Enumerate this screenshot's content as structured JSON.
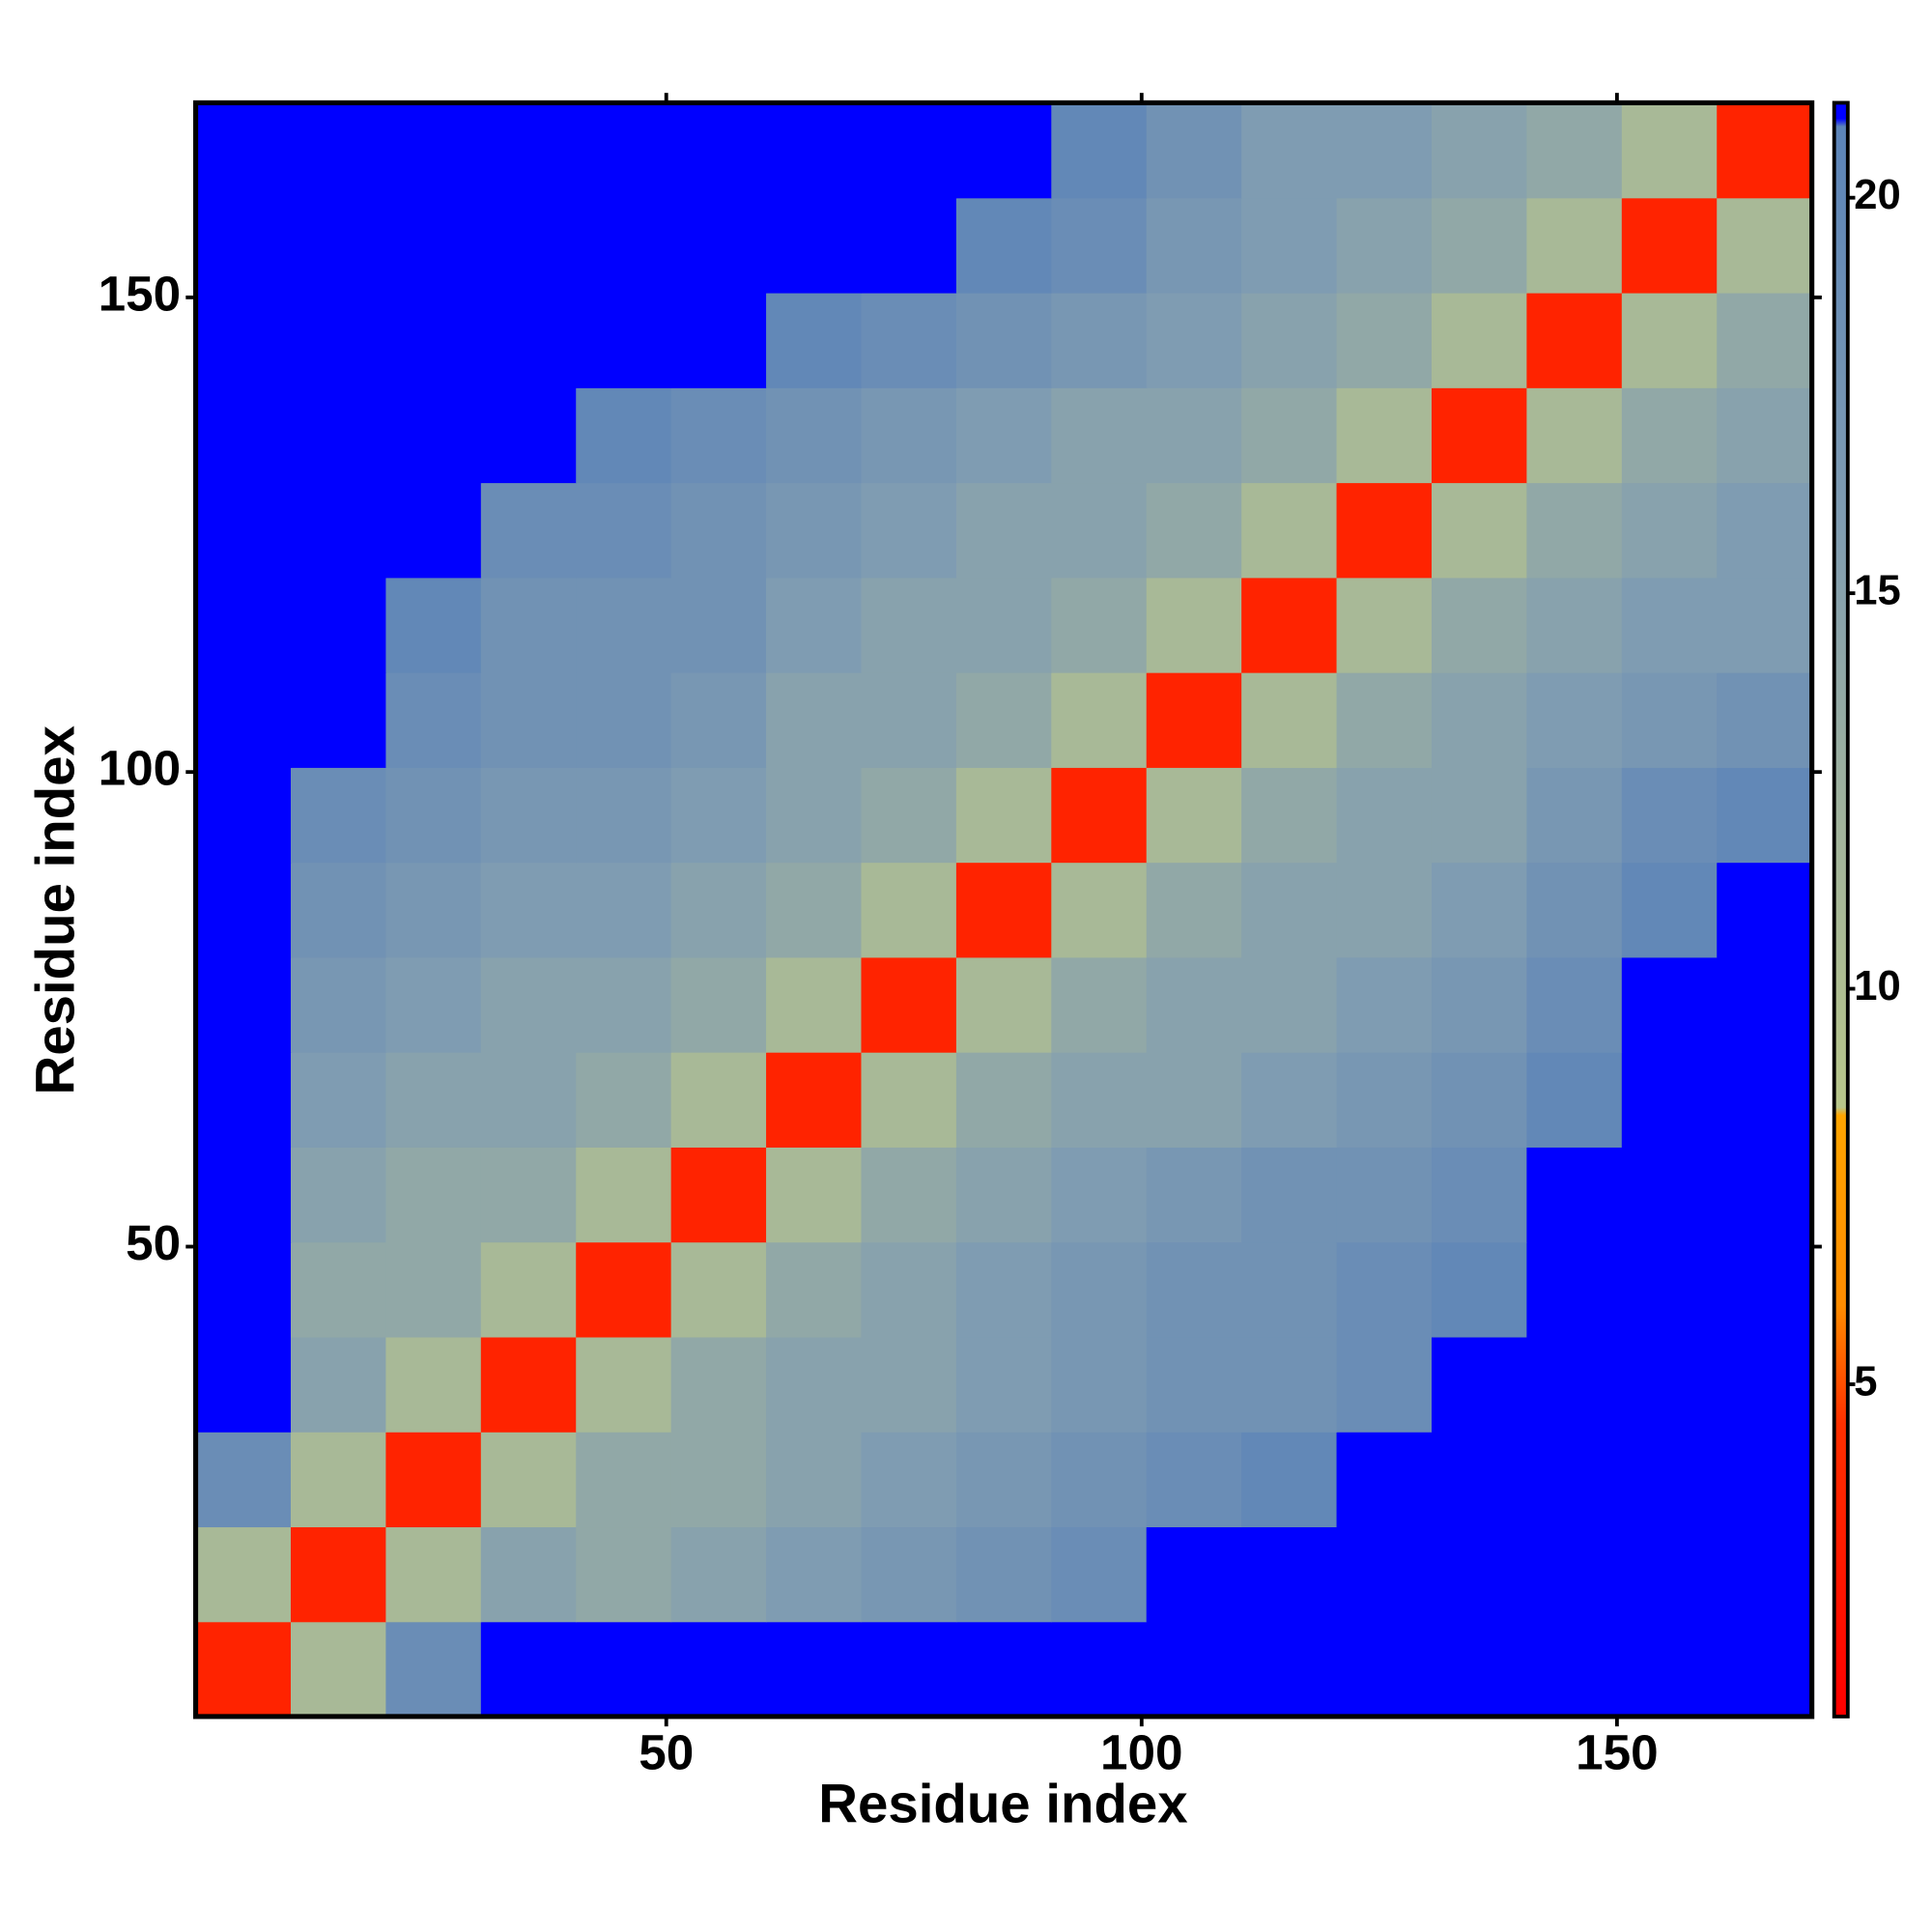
{
  "chart_data": {
    "type": "heatmap",
    "x_label": "Residue index",
    "y_label": "Residue index",
    "x": [
      5.5,
      15.5,
      25.5,
      35.5,
      45.5,
      55.5,
      65.5,
      75.5,
      85.5,
      95.5,
      105.5,
      115.5,
      125.5,
      135.5,
      145.5,
      155.5,
      165.5
    ],
    "y": [
      5.5,
      15.5,
      25.5,
      35.5,
      45.5,
      55.5,
      65.5,
      75.5,
      85.5,
      95.5,
      105.5,
      115.5,
      125.5,
      135.5,
      145.5,
      155.5,
      165.5
    ],
    "z": [
      [
        3.5,
        11,
        19,
        21.2,
        21.2,
        21.2,
        21.2,
        21.2,
        21.2,
        21.2,
        21.2,
        21.2,
        21.2,
        21.2,
        21.2,
        21.2,
        21.2
      ],
      [
        11,
        3.5,
        11,
        15,
        14,
        15,
        16,
        17,
        18,
        19,
        21.2,
        21.2,
        21.2,
        21.2,
        21.2,
        21.2,
        21.2
      ],
      [
        19,
        11,
        3.5,
        11,
        14,
        14,
        15,
        16,
        17,
        18,
        19,
        20,
        21.2,
        21.2,
        21.2,
        21.2,
        21.2
      ],
      [
        21.2,
        15,
        11,
        3.5,
        11,
        14,
        15,
        15,
        16,
        17,
        18,
        18,
        19,
        21.2,
        21.2,
        21.2,
        21.2
      ],
      [
        21.2,
        14,
        14,
        11,
        3.5,
        11,
        14,
        15,
        16,
        17,
        18,
        18,
        19,
        20,
        21.2,
        21.2,
        21.2
      ],
      [
        21.2,
        15,
        14,
        14,
        11,
        3.5,
        11,
        14,
        15,
        16,
        17,
        18,
        18,
        19,
        21.2,
        21.2,
        21.2
      ],
      [
        21.2,
        16,
        15,
        15,
        14,
        11,
        3.5,
        11,
        14,
        15,
        15,
        16,
        17,
        18,
        20,
        21.2,
        21.2
      ],
      [
        21.2,
        17,
        16,
        15,
        15,
        14,
        11,
        3.5,
        11,
        14,
        15,
        15,
        16,
        17,
        19,
        21.2,
        21.2
      ],
      [
        21.2,
        18,
        17,
        16,
        16,
        15,
        14,
        11,
        3.5,
        11,
        14,
        15,
        15,
        16,
        18,
        20,
        21.2
      ],
      [
        21.2,
        19,
        18,
        17,
        17,
        16,
        15,
        14,
        11,
        3.5,
        11,
        14,
        15,
        15,
        17,
        19,
        20
      ],
      [
        21.2,
        21.2,
        19,
        18,
        18,
        17,
        15,
        15,
        14,
        11,
        3.5,
        11,
        14,
        15,
        16,
        17,
        18
      ],
      [
        21.2,
        21.2,
        20,
        18,
        18,
        18,
        16,
        15,
        15,
        14,
        11,
        3.5,
        11,
        14,
        15,
        16,
        16
      ],
      [
        21.2,
        21.2,
        21.2,
        19,
        19,
        18,
        17,
        16,
        15,
        15,
        14,
        11,
        3.5,
        11,
        14,
        15,
        16
      ],
      [
        21.2,
        21.2,
        21.2,
        21.2,
        20,
        19,
        18,
        17,
        16,
        15,
        15,
        14,
        11,
        3.5,
        11,
        14,
        15
      ],
      [
        21.2,
        21.2,
        21.2,
        21.2,
        21.2,
        21.2,
        20,
        19,
        18,
        17,
        16,
        15,
        14,
        11,
        3.5,
        11,
        14
      ],
      [
        21.2,
        21.2,
        21.2,
        21.2,
        21.2,
        21.2,
        21.2,
        21.2,
        20,
        19,
        17,
        16,
        15,
        14,
        11,
        3.5,
        11
      ],
      [
        21.2,
        21.2,
        21.2,
        21.2,
        21.2,
        21.2,
        21.2,
        21.2,
        21.2,
        20,
        18,
        16,
        16,
        15,
        14,
        11,
        3.5
      ]
    ],
    "xlim": [
      0.5,
      170.5
    ],
    "ylim": [
      0.5,
      170.5
    ],
    "xticks": [
      50,
      100,
      150
    ],
    "yticks": [
      50,
      100,
      150
    ],
    "clim": [
      0.8,
      21.2
    ],
    "cticks": [
      5,
      10,
      15,
      20
    ],
    "colorscale": [
      [
        0.8,
        "#ff0000"
      ],
      [
        4.5,
        "#ff3000"
      ],
      [
        6,
        "#ff8c00"
      ],
      [
        8.4,
        "#ffa500"
      ],
      [
        8.5,
        "#b8c68a"
      ],
      [
        12,
        "#a2b49c"
      ],
      [
        16,
        "#7f9cb2"
      ],
      [
        20.9,
        "#5c84b8"
      ],
      [
        21,
        "#0000ff"
      ],
      [
        21.2,
        "#0000ff"
      ]
    ]
  }
}
